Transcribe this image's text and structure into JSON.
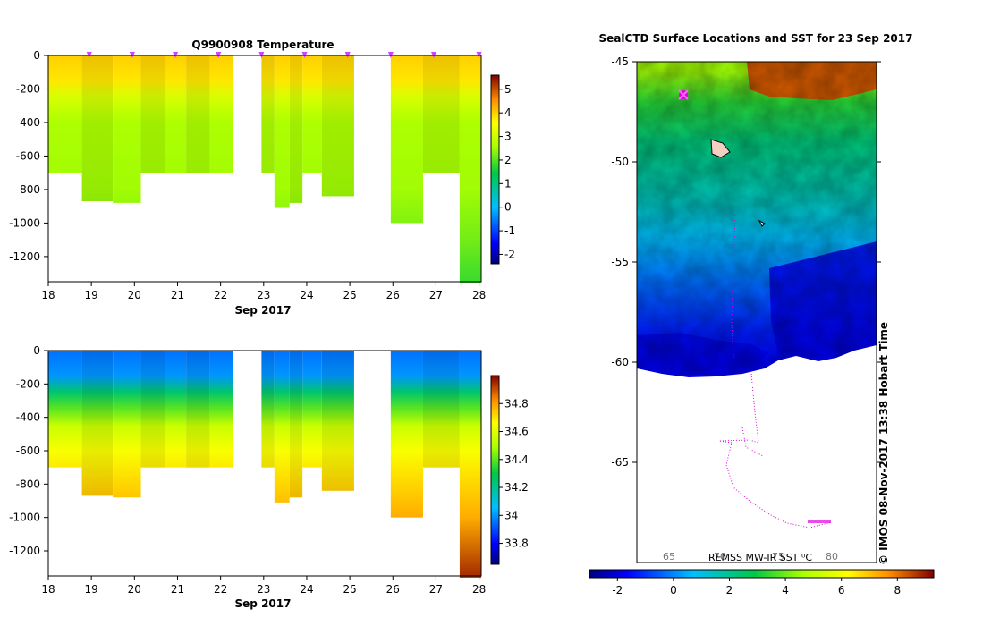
{
  "figure": {
    "stamp": "© IMOS 08-Nov-2017 13:38 Hobart Time"
  },
  "chart_data": [
    {
      "type": "heatmap",
      "title": "Q9900908  Temperature",
      "xlabel": "Sep 2017",
      "ylabel": "",
      "x_ticks": [
        "18",
        "19",
        "20",
        "21",
        "22",
        "23",
        "24",
        "25",
        "26",
        "27",
        "28"
      ],
      "xlim": [
        18,
        28.05
      ],
      "y_ticks": [
        "0",
        "-200",
        "-400",
        "-600",
        "-800",
        "-1000",
        "-1200"
      ],
      "ylim": [
        -1350,
        0
      ],
      "colorbar": {
        "min": -2.4,
        "max": 5.6,
        "ticks": [
          "5",
          "4",
          "3",
          "2",
          "1",
          "0",
          "-1",
          "-2"
        ],
        "tick_values": [
          5,
          4,
          3,
          2,
          1,
          0,
          -1,
          -2
        ]
      },
      "profile_markers": [
        18.95,
        19.95,
        20.95,
        21.95,
        22.95,
        23.95,
        24.95,
        25.95,
        26.95,
        28.0
      ],
      "profiles": [
        {
          "start": 18.0,
          "end": 18.78,
          "depth": 700
        },
        {
          "start": 18.78,
          "end": 19.5,
          "depth": 870
        },
        {
          "start": 19.5,
          "end": 20.15,
          "depth": 880
        },
        {
          "start": 20.15,
          "end": 20.7,
          "depth": 700
        },
        {
          "start": 20.7,
          "end": 21.2,
          "depth": 700
        },
        {
          "start": 21.2,
          "end": 21.75,
          "depth": 700
        },
        {
          "start": 21.75,
          "end": 22.28,
          "depth": 700
        },
        {
          "start": 22.95,
          "end": 23.25,
          "depth": 700
        },
        {
          "start": 23.25,
          "end": 23.6,
          "depth": 910
        },
        {
          "start": 23.6,
          "end": 23.9,
          "depth": 880
        },
        {
          "start": 23.9,
          "end": 24.35,
          "depth": 700
        },
        {
          "start": 24.35,
          "end": 25.1,
          "depth": 840
        },
        {
          "start": 25.95,
          "end": 26.7,
          "depth": 1000
        },
        {
          "start": 26.7,
          "end": 27.55,
          "depth": 700
        },
        {
          "start": 27.55,
          "end": 28.05,
          "depth": 1360
        }
      ],
      "temperature_by_depth": [
        {
          "depth": 0,
          "value": 4.0
        },
        {
          "depth": 150,
          "value": 3.8
        },
        {
          "depth": 250,
          "value": 3.1
        },
        {
          "depth": 400,
          "value": 2.6
        },
        {
          "depth": 800,
          "value": 2.5
        },
        {
          "depth": 1100,
          "value": 2.2
        },
        {
          "depth": 1360,
          "value": 1.8
        }
      ]
    },
    {
      "type": "heatmap",
      "title": "",
      "xlabel": "Sep 2017",
      "ylabel": "",
      "x_ticks": [
        "18",
        "19",
        "20",
        "21",
        "22",
        "23",
        "24",
        "25",
        "26",
        "27",
        "28"
      ],
      "xlim": [
        18,
        28.05
      ],
      "y_ticks": [
        "0",
        "-200",
        "-400",
        "-600",
        "-800",
        "-1000",
        "-1200"
      ],
      "ylim": [
        -1350,
        0
      ],
      "colorbar": {
        "min": 33.65,
        "max": 35.0,
        "ticks": [
          "34.8",
          "34.6",
          "34.4",
          "34.2",
          "34",
          "33.8"
        ],
        "tick_values": [
          34.8,
          34.6,
          34.4,
          34.2,
          34.0,
          33.8
        ]
      },
      "salinity_by_depth": [
        {
          "depth": 0,
          "value": 33.95
        },
        {
          "depth": 150,
          "value": 34.0
        },
        {
          "depth": 250,
          "value": 34.25
        },
        {
          "depth": 350,
          "value": 34.4
        },
        {
          "depth": 450,
          "value": 34.55
        },
        {
          "depth": 600,
          "value": 34.65
        },
        {
          "depth": 800,
          "value": 34.72
        },
        {
          "depth": 1000,
          "value": 34.78
        },
        {
          "depth": 1360,
          "value": 34.95
        }
      ]
    },
    {
      "type": "heatmap",
      "title": "SealCTD Surface Locations and SST for 23 Sep 2017",
      "y_ticks": [
        "-45",
        "-50",
        "-55",
        "-60",
        "-65"
      ],
      "ylim": [
        -70,
        -45
      ],
      "x_ticks": [
        "65",
        "70",
        "75",
        "80"
      ],
      "map_label": "REMSS MW-IR SST ⁰C",
      "colorbar": {
        "min": -3,
        "max": 9.3,
        "ticks": [
          "-2",
          "0",
          "2",
          "4",
          "6",
          "8"
        ],
        "tick_values": [
          -2,
          0,
          2,
          4,
          6,
          8
        ]
      },
      "sst_by_latitude": [
        {
          "lat": -45.5,
          "value": 4.5
        },
        {
          "lat": -47,
          "value": 3.3
        },
        {
          "lat": -49,
          "value": 2.3
        },
        {
          "lat": -52,
          "value": 1.5
        },
        {
          "lat": -54,
          "value": 0.6
        },
        {
          "lat": -56,
          "value": -0.3
        },
        {
          "lat": -58.5,
          "value": -1.3
        },
        {
          "lat": -60,
          "value": -1.8
        }
      ],
      "ice_edge_lat": -60.6
    }
  ]
}
